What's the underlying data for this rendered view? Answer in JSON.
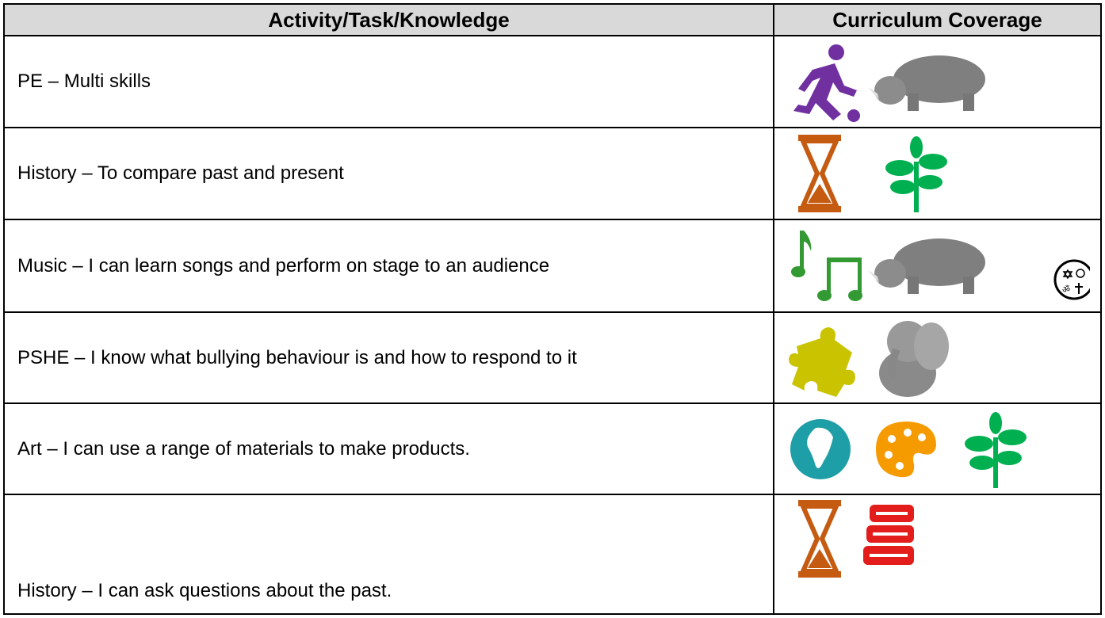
{
  "table": {
    "header": [
      "Activity/Task/Knowledge",
      "Curriculum Coverage"
    ],
    "rows": [
      [
        "PE – Multi skills"
      ],
      [
        "History – To compare past and present"
      ],
      [
        "Music – I can learn songs and perform on stage to an audience"
      ],
      [
        "PSHE – I know what bullying behaviour is and how to respond to it"
      ],
      [
        "Art – I can use a range of materials to make products."
      ],
      [
        "History – I can ask questions about the past."
      ]
    ]
  }
}
